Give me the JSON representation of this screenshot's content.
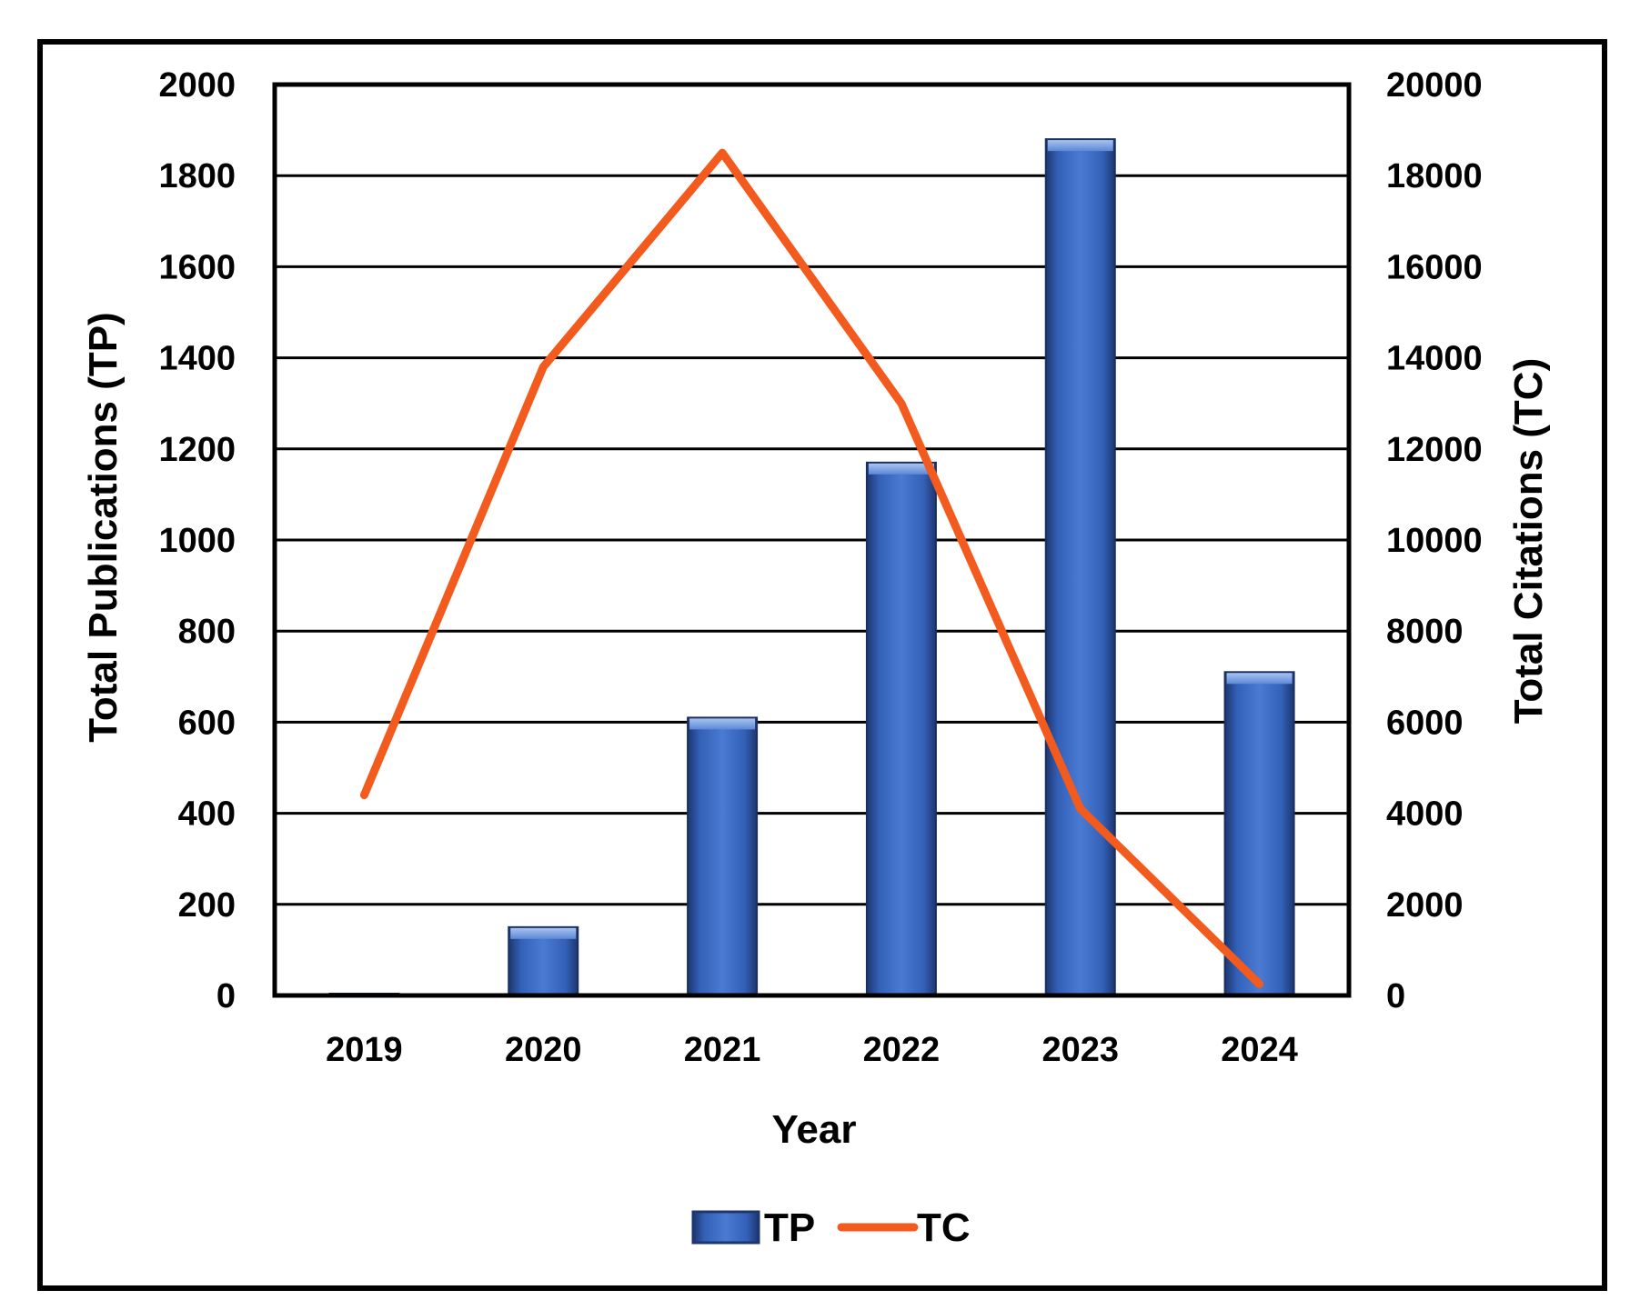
{
  "chart_data": {
    "type": "bar",
    "categories": [
      "2019",
      "2020",
      "2021",
      "2022",
      "2023",
      "2024"
    ],
    "series": [
      {
        "name": "TP",
        "kind": "bar",
        "axis": "left",
        "color": "#3f6ec4",
        "values": [
          3,
          150,
          610,
          1170,
          1880,
          710
        ]
      },
      {
        "name": "TC",
        "kind": "line",
        "axis": "right",
        "color": "#f25a1e",
        "values": [
          4400,
          13800,
          18500,
          13000,
          4100,
          250
        ]
      }
    ],
    "xlabel": "Year",
    "ylabel": "Total Publications (TP)",
    "y2label": "Total Citations (TC)",
    "ylim": [
      0,
      2000
    ],
    "y2lim": [
      0,
      20000
    ],
    "yticks": [
      "0",
      "200",
      "400",
      "600",
      "800",
      "1000",
      "1200",
      "1400",
      "1600",
      "1800",
      "2000"
    ],
    "y2ticks": [
      "0",
      "2000",
      "4000",
      "6000",
      "8000",
      "10000",
      "12000",
      "14000",
      "16000",
      "18000",
      "20000"
    ],
    "grid": true,
    "legend": "bottom"
  }
}
